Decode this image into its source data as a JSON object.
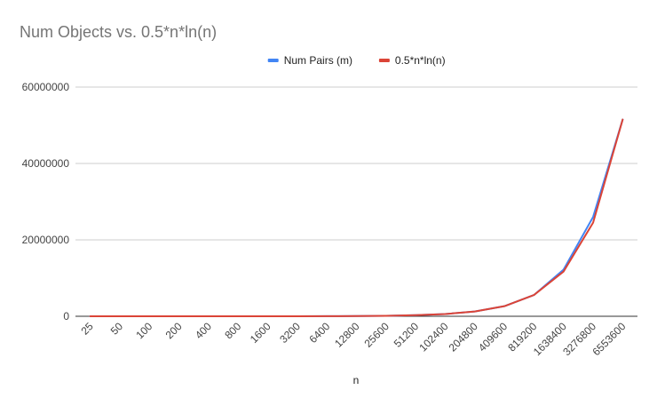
{
  "chart_data": {
    "type": "line",
    "title": "Num Objects vs. 0.5*n*ln(n)",
    "xlabel": "n",
    "ylabel": "",
    "categories": [
      "25",
      "50",
      "100",
      "200",
      "400",
      "800",
      "1600",
      "3200",
      "6400",
      "12800",
      "25600",
      "51200",
      "102400",
      "204800",
      "409600",
      "819200",
      "1638400",
      "3276800",
      "6553600"
    ],
    "series": [
      {
        "name": "Num Pairs (m)",
        "color": "#4285f4",
        "values": [
          40,
          98,
          230,
          530,
          1198,
          2674,
          5902,
          12915,
          28064,
          60550,
          129970,
          277740,
          590970,
          1252300,
          2643600,
          5563400,
          12200000,
          26000000,
          51500000
        ]
      },
      {
        "name": "0.5*n*ln(n)",
        "color": "#db4437",
        "values": [
          40,
          98,
          230,
          530,
          1198,
          2674,
          5902,
          12915,
          28064,
          60550,
          129970,
          277740,
          590970,
          1252300,
          2643600,
          5563400,
          11700000,
          24500000,
          51500000
        ]
      }
    ],
    "yticks": [
      "0",
      "20000000",
      "40000000",
      "60000000"
    ],
    "ytick_values": [
      0,
      20000000,
      40000000,
      60000000
    ],
    "ylim": [
      0,
      60000000
    ],
    "grid": true,
    "legend_position": "top"
  }
}
